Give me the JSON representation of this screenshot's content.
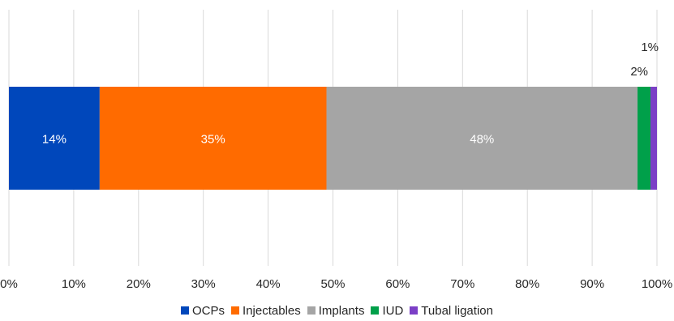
{
  "chart_data": {
    "type": "bar",
    "orientation": "horizontal",
    "stacked": true,
    "normalized": true,
    "categories": [
      ""
    ],
    "series": [
      {
        "name": "OCPs",
        "values": [
          14
        ],
        "label": "14%",
        "color": "#0047BB"
      },
      {
        "name": "Injectables",
        "values": [
          35
        ],
        "label": "35%",
        "color": "#FF6B00"
      },
      {
        "name": "Implants",
        "values": [
          48
        ],
        "label": "48%",
        "color": "#A5A5A5"
      },
      {
        "name": "IUD",
        "values": [
          2
        ],
        "label": "2%",
        "color": "#00A04A"
      },
      {
        "name": "Tubal ligation",
        "values": [
          1
        ],
        "label": "1%",
        "color": "#7B3FC6"
      }
    ],
    "xlim": [
      0,
      100
    ],
    "x_ticks": [
      "0%",
      "10%",
      "20%",
      "30%",
      "40%",
      "50%",
      "60%",
      "70%",
      "80%",
      "90%",
      "100%"
    ],
    "grid": "vertical",
    "legend_position": "bottom"
  }
}
